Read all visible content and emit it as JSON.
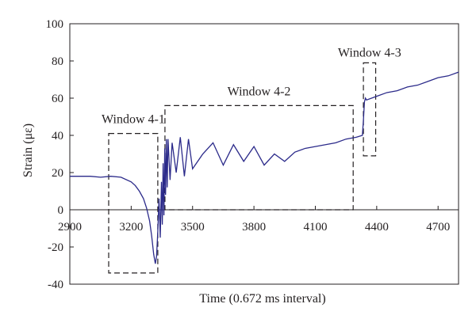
{
  "chart_data": {
    "type": "line",
    "xlabel": "Time (0.672 ms interval)",
    "ylabel": "Strain (με)",
    "xlim": [
      2900,
      4800
    ],
    "ylim": [
      -40,
      100
    ],
    "xticks": [
      2900,
      3200,
      3500,
      3800,
      4100,
      4400,
      4700
    ],
    "yticks": [
      -40,
      -20,
      0,
      20,
      40,
      60,
      80,
      100
    ],
    "grid": false,
    "line_color": "#2b2a8a",
    "series": [
      {
        "x": [
          2900,
          2950,
          3000,
          3050,
          3100,
          3150,
          3200,
          3220,
          3240,
          3260,
          3275,
          3290,
          3300,
          3310,
          3318,
          3324,
          3330,
          3336,
          3342,
          3348,
          3352,
          3356,
          3360,
          3364,
          3368,
          3372,
          3376,
          3380,
          3390,
          3400,
          3420,
          3440,
          3460,
          3480,
          3500,
          3550,
          3600,
          3650,
          3700,
          3750,
          3800,
          3850,
          3900,
          3950,
          4000,
          4050,
          4100,
          4150,
          4200,
          4250,
          4300,
          4330,
          4335,
          4340,
          4345,
          4350,
          4400,
          4450,
          4500,
          4550,
          4600,
          4650,
          4700,
          4750,
          4800
        ],
        "y": [
          18,
          18,
          18,
          17.5,
          18,
          17.5,
          15,
          13,
          10,
          6,
          1,
          -6,
          -14,
          -24,
          -29,
          -25,
          -12,
          6,
          -15,
          15,
          -8,
          25,
          -3,
          33,
          8,
          38,
          12,
          38,
          16,
          36,
          20,
          39,
          18,
          38,
          22,
          30,
          36,
          24,
          35,
          26,
          34,
          24,
          30,
          26,
          31,
          33,
          34,
          35,
          36,
          38,
          39,
          40,
          48,
          58,
          60,
          59,
          61,
          63,
          64,
          66,
          67,
          69,
          71,
          72,
          74
        ]
      }
    ],
    "annotations": [
      {
        "label": "Window 4-1",
        "x_range": [
          3090,
          3330
        ],
        "y_range": [
          -34,
          41
        ]
      },
      {
        "label": "Window 4-2",
        "x_range": [
          3365,
          4285
        ],
        "y_range": [
          0,
          56
        ]
      },
      {
        "label": "Window 4-3",
        "x_range": [
          4335,
          4395
        ],
        "y_range": [
          29,
          79
        ]
      }
    ]
  }
}
